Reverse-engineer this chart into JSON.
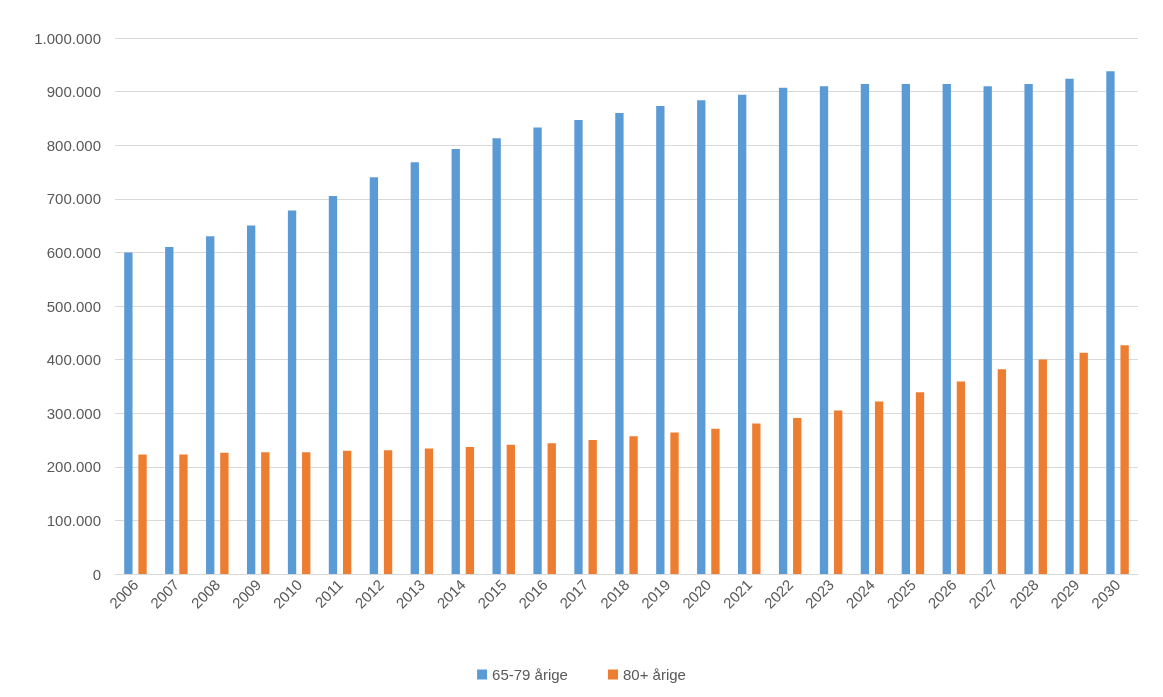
{
  "chart_data": {
    "type": "bar",
    "categories": [
      "2006",
      "2007",
      "2008",
      "2009",
      "2010",
      "2011",
      "2012",
      "2013",
      "2014",
      "2015",
      "2016",
      "2017",
      "2018",
      "2019",
      "2020",
      "2021",
      "2022",
      "2023",
      "2024",
      "2025",
      "2026",
      "2027",
      "2028",
      "2029",
      "2030"
    ],
    "series": [
      {
        "name": "65-79 årige",
        "color": "#5b9bd5",
        "values": [
          600000,
          610000,
          630000,
          650000,
          678000,
          705000,
          740000,
          768000,
          793000,
          813000,
          833000,
          847000,
          860000,
          873000,
          884000,
          894000,
          907000,
          910000,
          914000,
          914000,
          914000,
          910000,
          914000,
          924000,
          938000
        ]
      },
      {
        "name": "80+ årige",
        "color": "#ed7d31",
        "values": [
          223000,
          223000,
          226000,
          227000,
          227000,
          230000,
          231000,
          234000,
          237000,
          241000,
          244000,
          250000,
          257000,
          264000,
          271000,
          281000,
          291000,
          305000,
          322000,
          339000,
          359000,
          382000,
          400000,
          413000,
          427000
        ]
      }
    ],
    "ylim": [
      0,
      1000000
    ],
    "yticks": [
      0,
      {
        "value": 100000,
        "label": "100.000"
      },
      {
        "value": 200000,
        "label": "200.000"
      },
      {
        "value": 300000,
        "label": "300.000"
      },
      {
        "value": 400000,
        "label": "400.000"
      },
      {
        "value": 500000,
        "label": "500.000"
      },
      {
        "value": 600000,
        "label": "600.000"
      },
      {
        "value": 700000,
        "label": "700.000"
      },
      {
        "value": 800000,
        "label": "800.000"
      },
      {
        "value": 900000,
        "label": "900.000"
      },
      {
        "value": 1000000,
        "label": "1.000.000"
      }
    ],
    "grid": "y",
    "legend": "bottom"
  }
}
